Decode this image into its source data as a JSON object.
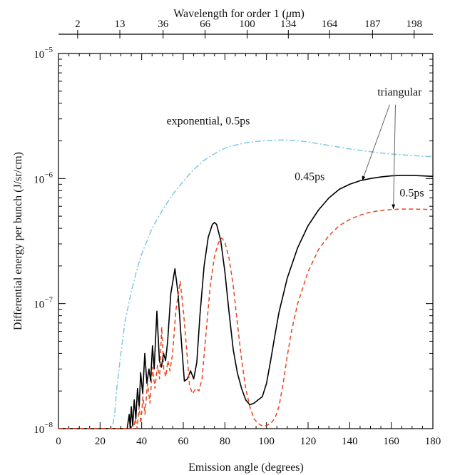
{
  "chart_data": {
    "type": "line",
    "xlabel": "Emission angle (degrees)",
    "ylabel": "Differential energy per bunch (J/sr/cm)",
    "top_axis_label": "Wavelength for order 1 (μm)",
    "xlim": [
      0,
      180
    ],
    "ylim": [
      1e-08,
      1e-05
    ],
    "yscale": "log",
    "grid": false,
    "x_ticks": [
      0,
      20,
      40,
      60,
      80,
      100,
      120,
      140,
      160,
      180
    ],
    "x_tick_labels": [
      "0",
      "20",
      "40",
      "60",
      "80",
      "100",
      "120",
      "140",
      "160",
      "180"
    ],
    "y_ticks": [
      {
        "value": 1e-08,
        "base": "10",
        "exp": "−8"
      },
      {
        "value": 1e-07,
        "base": "10",
        "exp": "−7"
      },
      {
        "value": 1e-06,
        "base": "10",
        "exp": "−6"
      },
      {
        "value": 1e-05,
        "base": "10",
        "exp": "−5"
      }
    ],
    "top_ticks": [
      {
        "angle": 9.2,
        "label": "2"
      },
      {
        "angle": 29.5,
        "label": "13"
      },
      {
        "angle": 50.3,
        "label": "36"
      },
      {
        "angle": 70.5,
        "label": "66"
      },
      {
        "angle": 90.7,
        "label": "100"
      },
      {
        "angle": 110.5,
        "label": "134"
      },
      {
        "angle": 130.3,
        "label": "164"
      },
      {
        "angle": 151.0,
        "label": "187"
      },
      {
        "angle": 171.0,
        "label": "198"
      }
    ],
    "annotations": [
      {
        "text": "exponential, 0.5ps",
        "x": 72,
        "y": 2.7e-06
      },
      {
        "text": "triangular",
        "x": 164,
        "y": 4.6e-06
      },
      {
        "text": "0.45ps",
        "x": 128,
        "y": 9.7e-07
      },
      {
        "text": "0.5ps",
        "x": 164,
        "y": 7.2e-07
      }
    ],
    "series": [
      {
        "style": "dash-dot",
        "color": "#7ec8e3",
        "points": [
          [
            0,
            1e-08
          ],
          [
            5,
            1e-08
          ],
          [
            10,
            1e-08
          ],
          [
            15,
            1e-08
          ],
          [
            20,
            1e-08
          ],
          [
            25,
            1e-08
          ],
          [
            26,
            1.05e-08
          ],
          [
            27,
            1.3e-08
          ],
          [
            28,
            2.1e-08
          ],
          [
            30,
            4e-08
          ],
          [
            32,
            7.2e-08
          ],
          [
            35,
            1.25e-07
          ],
          [
            38,
            1.95e-07
          ],
          [
            40,
            2.5e-07
          ],
          [
            45,
            4e-07
          ],
          [
            50,
            5.6e-07
          ],
          [
            55,
            7.5e-07
          ],
          [
            60,
            9.5e-07
          ],
          [
            65,
            1.18e-06
          ],
          [
            70,
            1.4e-06
          ],
          [
            75,
            1.58e-06
          ],
          [
            80,
            1.75e-06
          ],
          [
            85,
            1.85e-06
          ],
          [
            90,
            1.93e-06
          ],
          [
            95,
            1.98e-06
          ],
          [
            100,
            2.01e-06
          ],
          [
            105,
            2.03e-06
          ],
          [
            110,
            2.03e-06
          ],
          [
            115,
            2.01e-06
          ],
          [
            120,
            1.96e-06
          ],
          [
            125,
            1.9e-06
          ],
          [
            130,
            1.84e-06
          ],
          [
            135,
            1.78e-06
          ],
          [
            140,
            1.72e-06
          ],
          [
            145,
            1.68e-06
          ],
          [
            150,
            1.64e-06
          ],
          [
            155,
            1.6e-06
          ],
          [
            160,
            1.57e-06
          ],
          [
            165,
            1.55e-06
          ],
          [
            170,
            1.53e-06
          ],
          [
            175,
            1.51e-06
          ],
          [
            180,
            1.5e-06
          ]
        ]
      },
      {
        "style": "solid",
        "color": "#000000",
        "points": [
          [
            0,
            1e-08
          ],
          [
            33,
            1e-08
          ],
          [
            34,
            1.3e-08
          ],
          [
            34.5,
            1e-08
          ],
          [
            35,
            1.5e-08
          ],
          [
            35.7,
            1.05e-08
          ],
          [
            36.4,
            1.7e-08
          ],
          [
            37.2,
            1.2e-08
          ],
          [
            38,
            2.1e-08
          ],
          [
            38.8,
            1.5e-08
          ],
          [
            39.5,
            2.8e-08
          ],
          [
            40.5,
            1.9e-08
          ],
          [
            41.5,
            4e-08
          ],
          [
            42.5,
            2.3e-08
          ],
          [
            43.5,
            3e-08
          ],
          [
            44.3,
            2.4e-08
          ],
          [
            45.2,
            4.6e-08
          ],
          [
            46,
            3e-08
          ],
          [
            47.3,
            8.7e-08
          ],
          [
            48.5,
            3.5e-08
          ],
          [
            49.5,
            3.1e-08
          ],
          [
            50.5,
            4e-08
          ],
          [
            51.5,
            3.5e-08
          ],
          [
            52.5,
            5e-08
          ],
          [
            54,
            1.2e-07
          ],
          [
            56,
            1.9e-07
          ],
          [
            57.5,
            1.2e-07
          ],
          [
            59,
            5.2e-08
          ],
          [
            60.5,
            2.4e-08
          ],
          [
            62,
            2.5e-08
          ],
          [
            63.5,
            2.9e-08
          ],
          [
            65,
            2.5e-08
          ],
          [
            66.5,
            3.4e-08
          ],
          [
            68,
            8e-08
          ],
          [
            70,
            2e-07
          ],
          [
            72,
            3.4e-07
          ],
          [
            74,
            4.3e-07
          ],
          [
            75,
            4.45e-07
          ],
          [
            76,
            4.3e-07
          ],
          [
            78,
            3.2e-07
          ],
          [
            80,
            1.8e-07
          ],
          [
            82,
            8.5e-08
          ],
          [
            84,
            4.3e-08
          ],
          [
            86,
            2.8e-08
          ],
          [
            88,
            2.1e-08
          ],
          [
            90,
            1.7e-08
          ],
          [
            92,
            1.55e-08
          ],
          [
            94,
            1.6e-08
          ],
          [
            96,
            1.7e-08
          ],
          [
            98,
            1.8e-08
          ],
          [
            100,
            2.3e-08
          ],
          [
            102,
            3.5e-08
          ],
          [
            104,
            5.5e-08
          ],
          [
            106,
            8.5e-08
          ],
          [
            110,
            1.6e-07
          ],
          [
            115,
            2.8e-07
          ],
          [
            120,
            4.2e-07
          ],
          [
            125,
            5.6e-07
          ],
          [
            130,
            7e-07
          ],
          [
            135,
            8.2e-07
          ],
          [
            140,
            9e-07
          ],
          [
            145,
            9.6e-07
          ],
          [
            150,
            1e-06
          ],
          [
            155,
            1.03e-06
          ],
          [
            160,
            1.05e-06
          ],
          [
            165,
            1.06e-06
          ],
          [
            170,
            1.06e-06
          ],
          [
            175,
            1.05e-06
          ],
          [
            180,
            1.04e-06
          ]
        ]
      },
      {
        "style": "dashed",
        "color": "#e8451f",
        "points": [
          [
            0,
            1e-08
          ],
          [
            36,
            1e-08
          ],
          [
            37,
            1.2e-08
          ],
          [
            37.8,
            1e-08
          ],
          [
            38.8,
            1.5e-08
          ],
          [
            39.6,
            1.1e-08
          ],
          [
            40.6,
            1.8e-08
          ],
          [
            41.6,
            1.3e-08
          ],
          [
            42.8,
            2.3e-08
          ],
          [
            44,
            1.6e-08
          ],
          [
            45.2,
            3.1e-08
          ],
          [
            46.4,
            2.1e-08
          ],
          [
            47.6,
            3.2e-08
          ],
          [
            48.6,
            2.5e-08
          ],
          [
            49.6,
            6.5e-08
          ],
          [
            50.6,
            3e-08
          ],
          [
            51.6,
            2.6e-08
          ],
          [
            52.6,
            3.5e-08
          ],
          [
            53.6,
            2.9e-08
          ],
          [
            54.8,
            3.9e-08
          ],
          [
            56.5,
            9e-08
          ],
          [
            58.5,
            1.5e-07
          ],
          [
            60,
            9e-08
          ],
          [
            61.5,
            4.5e-08
          ],
          [
            63,
            2.2e-08
          ],
          [
            64.5,
            1.9e-08
          ],
          [
            66,
            2.1e-08
          ],
          [
            67.5,
            2e-08
          ],
          [
            69,
            2.5e-08
          ],
          [
            71,
            6e-08
          ],
          [
            73,
            1.4e-07
          ],
          [
            75,
            2.4e-07
          ],
          [
            77,
            3.1e-07
          ],
          [
            78.5,
            3.35e-07
          ],
          [
            80,
            3.1e-07
          ],
          [
            82,
            2.3e-07
          ],
          [
            84,
            1.4e-07
          ],
          [
            86,
            7e-08
          ],
          [
            88,
            3.6e-08
          ],
          [
            90,
            2.1e-08
          ],
          [
            92,
            1.5e-08
          ],
          [
            94,
            1.2e-08
          ],
          [
            96,
            1.1e-08
          ],
          [
            98,
            1.05e-08
          ],
          [
            100,
            1.06e-08
          ],
          [
            102,
            1.1e-08
          ],
          [
            104,
            1.2e-08
          ],
          [
            106,
            1.5e-08
          ],
          [
            108,
            2.3e-08
          ],
          [
            110,
            3.8e-08
          ],
          [
            112,
            6e-08
          ],
          [
            115,
            1e-07
          ],
          [
            120,
            1.8e-07
          ],
          [
            125,
            2.7e-07
          ],
          [
            130,
            3.5e-07
          ],
          [
            135,
            4.2e-07
          ],
          [
            140,
            4.7e-07
          ],
          [
            145,
            5.1e-07
          ],
          [
            150,
            5.4e-07
          ],
          [
            155,
            5.55e-07
          ],
          [
            160,
            5.65e-07
          ],
          [
            165,
            5.7e-07
          ],
          [
            170,
            5.7e-07
          ],
          [
            175,
            5.68e-07
          ],
          [
            180,
            5.65e-07
          ]
        ]
      }
    ]
  }
}
